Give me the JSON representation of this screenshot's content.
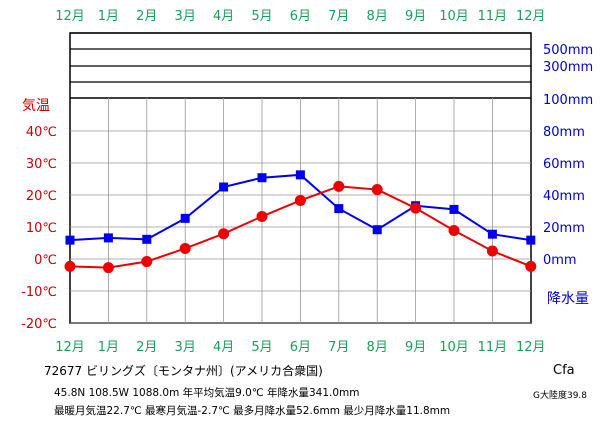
{
  "chart_data": {
    "type": "line",
    "months": [
      "12月",
      "1月",
      "2月",
      "3月",
      "4月",
      "5月",
      "6月",
      "7月",
      "8月",
      "9月",
      "10月",
      "11月",
      "12月"
    ],
    "temperature_axis": {
      "title": "気温",
      "ticks": [
        "40℃",
        "30℃",
        "20℃",
        "10℃",
        "0℃",
        "-10℃",
        "-20℃"
      ],
      "tick_values": [
        40,
        30,
        20,
        10,
        0,
        -10,
        -20
      ],
      "range": [
        -20,
        40
      ]
    },
    "precipitation_axis": {
      "title": "降水量",
      "ticks": [
        "500mm",
        "300mm",
        "100mm",
        "80mm",
        "60mm",
        "40mm",
        "20mm",
        "0mm"
      ],
      "tick_values": [
        500,
        300,
        100,
        80,
        60,
        40,
        20,
        0
      ]
    },
    "series": [
      {
        "name": "気温",
        "color": "#ee0000",
        "marker": "circle",
        "values": [
          -2.3,
          -2.7,
          -0.8,
          3.3,
          7.9,
          13.3,
          18.3,
          22.7,
          21.7,
          15.9,
          8.9,
          2.5,
          -2.3
        ]
      },
      {
        "name": "降水量",
        "color": "#0000ee",
        "marker": "square",
        "values": [
          11.8,
          13.2,
          12.3,
          25.4,
          45.0,
          50.8,
          52.6,
          31.5,
          18.3,
          33.3,
          31.0,
          15.5,
          11.8
        ]
      }
    ],
    "grid": true
  },
  "station": {
    "title": "72677 ビリングズ〔モンタナ州〕(アメリカ合衆国)",
    "line1": "45.8N 108.5W 1088.0m 年平均気温9.0℃ 年降水量341.0mm",
    "line2": "最暖月気温22.7℃ 最寒月気温-2.7℃ 最多月降水量52.6mm 最少月降水量11.8mm"
  },
  "climate": {
    "code": "Cfa",
    "continentality": "G大陸度39.8"
  }
}
